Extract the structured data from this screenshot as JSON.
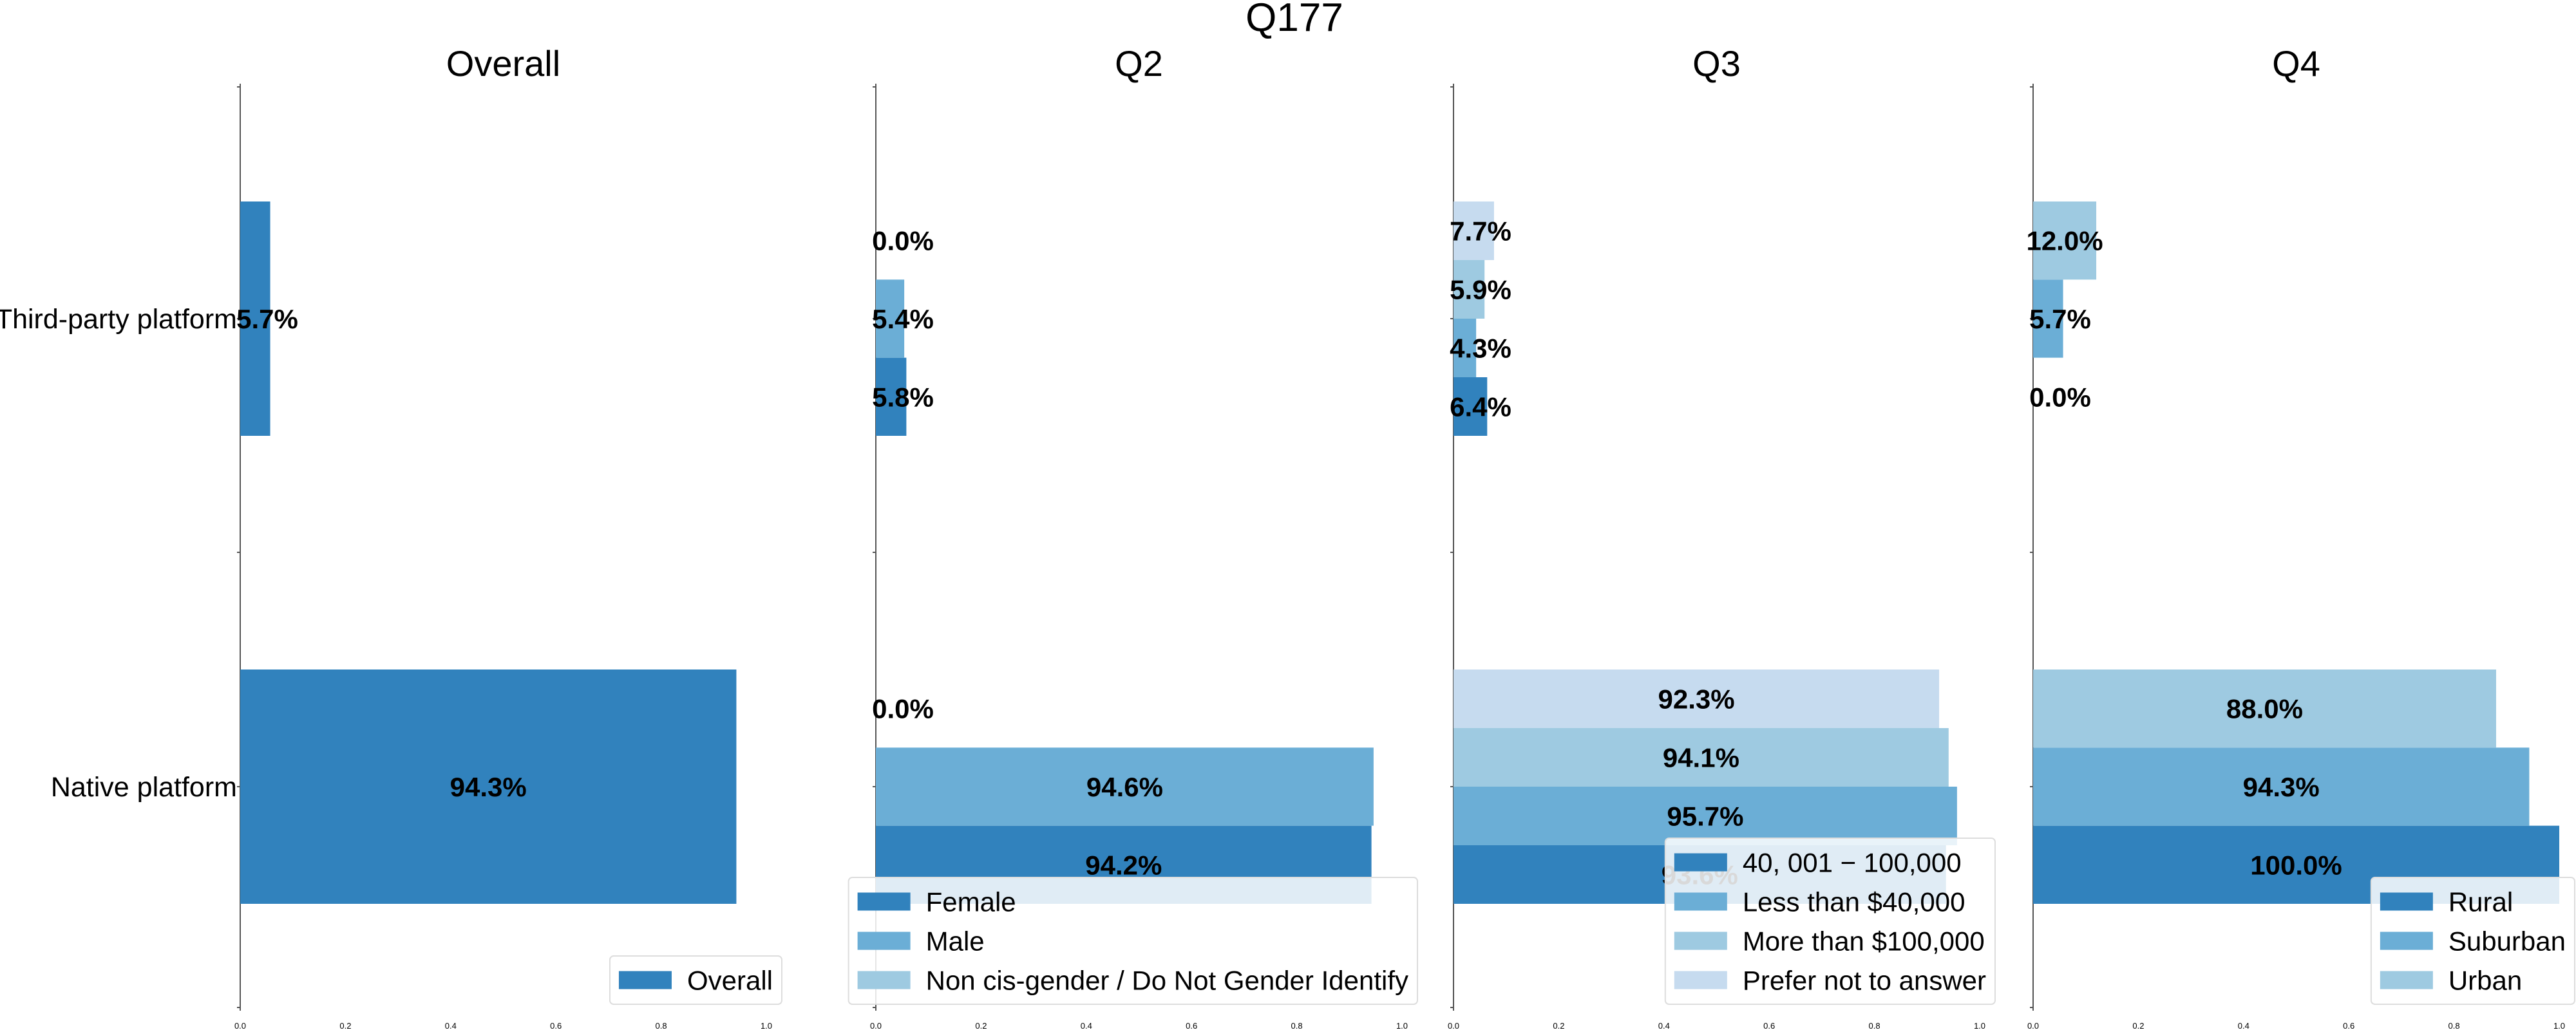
{
  "figure_title": "Q177",
  "colors": {
    "shade1": "#3182bd",
    "shade2": "#6baed6",
    "shade3": "#9ecae1",
    "shade4": "#c6dbef",
    "axis": "#555555"
  },
  "chart_data": [
    {
      "type": "bar",
      "orientation": "horizontal",
      "title": "Overall",
      "categories": [
        "Third-party platform",
        "Native platform"
      ],
      "xlim": [
        0,
        1
      ],
      "ticks": [
        "0.0",
        "0.2",
        "0.4",
        "0.6",
        "0.8",
        "1.0"
      ],
      "legend_position": "bottom-right",
      "series": [
        {
          "name": "Overall",
          "values": [
            0.057,
            0.943
          ],
          "labels": [
            "5.7%",
            "94.3%"
          ]
        }
      ]
    },
    {
      "type": "bar",
      "orientation": "horizontal",
      "title": "Q2",
      "categories": [
        "Third-party platform",
        "Native platform"
      ],
      "xlim": [
        0,
        1
      ],
      "ticks": [
        "0.0",
        "0.2",
        "0.4",
        "0.6",
        "0.8",
        "1.0"
      ],
      "legend_position": "bottom-right",
      "series": [
        {
          "name": "Female",
          "values": [
            0.058,
            0.942
          ],
          "labels": [
            "5.8%",
            "94.2%"
          ]
        },
        {
          "name": "Male",
          "values": [
            0.054,
            0.946
          ],
          "labels": [
            "5.4%",
            "94.6%"
          ]
        },
        {
          "name": "Non cis-gender / Do Not Gender Identify",
          "values": [
            0.0,
            0.0
          ],
          "labels": [
            "0.0%",
            "0.0%"
          ]
        }
      ]
    },
    {
      "type": "bar",
      "orientation": "horizontal",
      "title": "Q3",
      "categories": [
        "Third-party platform",
        "Native platform"
      ],
      "xlim": [
        0,
        1
      ],
      "ticks": [
        "0.0",
        "0.2",
        "0.4",
        "0.6",
        "0.8",
        "1.0"
      ],
      "legend_position": "bottom-right",
      "series": [
        {
          "name": "40, 001 − 100,000",
          "values": [
            0.064,
            0.936
          ],
          "labels": [
            "6.4%",
            "93.6%"
          ]
        },
        {
          "name": "Less than $40,000",
          "values": [
            0.043,
            0.957
          ],
          "labels": [
            "4.3%",
            "95.7%"
          ]
        },
        {
          "name": "More than $100,000",
          "values": [
            0.059,
            0.941
          ],
          "labels": [
            "5.9%",
            "94.1%"
          ]
        },
        {
          "name": "Prefer not to answer",
          "values": [
            0.077,
            0.923
          ],
          "labels": [
            "7.7%",
            "92.3%"
          ]
        }
      ]
    },
    {
      "type": "bar",
      "orientation": "horizontal",
      "title": "Q4",
      "categories": [
        "Third-party platform",
        "Native platform"
      ],
      "xlim": [
        0,
        1
      ],
      "ticks": [
        "0.0",
        "0.2",
        "0.4",
        "0.6",
        "0.8",
        "1.0"
      ],
      "legend_position": "bottom-right",
      "series": [
        {
          "name": "Rural",
          "values": [
            0.0,
            1.0
          ],
          "labels": [
            "0.0%",
            "100.0%"
          ]
        },
        {
          "name": "Suburban",
          "values": [
            0.057,
            0.943
          ],
          "labels": [
            "5.7%",
            "94.3%"
          ]
        },
        {
          "name": "Urban",
          "values": [
            0.12,
            0.88
          ],
          "labels": [
            "12.0%",
            "88.0%"
          ]
        }
      ]
    }
  ]
}
